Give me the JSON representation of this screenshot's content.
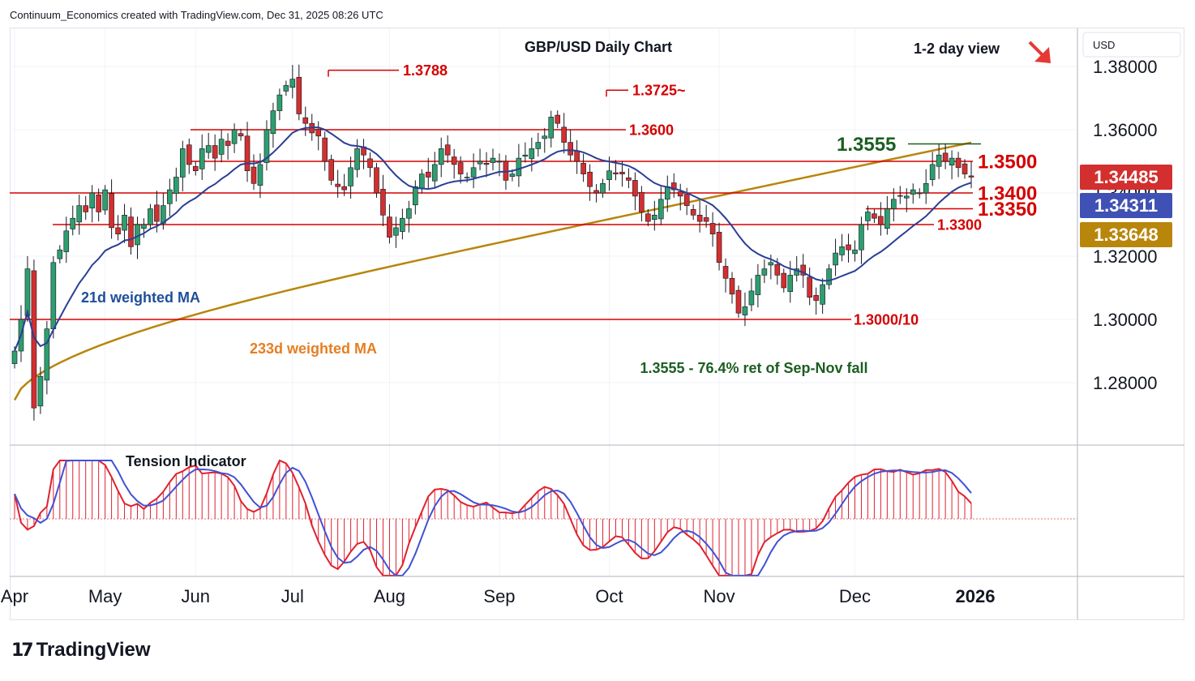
{
  "header": {
    "attribution": "Continuum_Economics created with TradingView.com, Dec 31, 2025 08:26 UTC"
  },
  "brand": {
    "logo_text": "TradingView"
  },
  "colors": {
    "up": "#26a69a",
    "down": "#e0212f",
    "candle_up": "#2e9e6e",
    "candle_down": "#d32f2f",
    "ma21": "#2a3f94",
    "ma233": "#b8860b",
    "level": "#d50000",
    "green_text": "#1b5e20",
    "orange_text": "#e67e22",
    "blue_text": "#1f4e9a"
  },
  "chart_data": [
    {
      "type": "candlestick",
      "title": "GBP/USD Daily Chart",
      "view_label": "1-2 day view",
      "view_arrow": "down-right-arrow",
      "currency": "USD",
      "x_ticks": [
        "Apr",
        "May",
        "Jun",
        "Jul",
        "Aug",
        "Sep",
        "Oct",
        "Nov",
        "Dec",
        "2026"
      ],
      "y_ticks": [
        "1.28000",
        "1.30000",
        "1.32000",
        "1.34000",
        "1.36000",
        "1.38000"
      ],
      "ylim": [
        1.266,
        1.387
      ],
      "price_labels": [
        {
          "value": "1.34485",
          "role": "last_price"
        },
        {
          "value": "1.34311",
          "role": "ma21"
        },
        {
          "value": "1.33648",
          "role": "ma233"
        }
      ],
      "levels": [
        {
          "label": "1.3788",
          "price": 1.3788
        },
        {
          "label": "1.3725~",
          "price": 1.3725
        },
        {
          "label": "1.3600",
          "price": 1.36
        },
        {
          "label": "1.3555",
          "price": 1.3555
        },
        {
          "label": "1.3500",
          "price": 1.35
        },
        {
          "label": "1.3400",
          "price": 1.34
        },
        {
          "label": "1.3350",
          "price": 1.335
        },
        {
          "label": "1.3300",
          "price": 1.33
        },
        {
          "label": "1.3000/10",
          "price": 1.3
        }
      ],
      "annotations": {
        "ma21_label": "21d weighted MA",
        "ma233_label": "233d weighted MA",
        "fib_note": "1.3555 - 76.4% ret of Sep-Nov fall"
      },
      "close_series": [
        [
          "Apr",
          1.29
        ],
        [
          "",
          1.3
        ],
        [
          "",
          1.316
        ],
        [
          "",
          1.272
        ],
        [
          "",
          1.282
        ],
        [
          "",
          1.297
        ],
        [
          "",
          1.318
        ],
        [
          "",
          1.322
        ],
        [
          "",
          1.328
        ],
        [
          "",
          1.332
        ],
        [
          "",
          1.336
        ],
        [
          "",
          1.334
        ],
        [
          "",
          1.34
        ],
        [
          "",
          1.334
        ],
        [
          "May",
          1.341
        ],
        [
          "",
          1.329
        ],
        [
          "",
          1.327
        ],
        [
          "",
          1.333
        ],
        [
          "",
          1.323
        ],
        [
          "",
          1.33
        ],
        [
          "",
          1.33
        ],
        [
          "",
          1.335
        ],
        [
          "",
          1.331
        ],
        [
          "",
          1.336
        ],
        [
          "",
          1.341
        ],
        [
          "",
          1.345
        ],
        [
          "",
          1.354
        ],
        [
          "",
          1.349
        ],
        [
          "Jun",
          1.347
        ],
        [
          "",
          1.354
        ],
        [
          "",
          1.355
        ],
        [
          "",
          1.351
        ],
        [
          "",
          1.357
        ],
        [
          "",
          1.355
        ],
        [
          "",
          1.36
        ],
        [
          "",
          1.358
        ],
        [
          "",
          1.347
        ],
        [
          "",
          1.343
        ],
        [
          "",
          1.349
        ],
        [
          "",
          1.36
        ],
        [
          "",
          1.366
        ],
        [
          "",
          1.371
        ],
        [
          "",
          1.374
        ],
        [
          "Jul",
          1.376
        ],
        [
          "",
          1.365
        ],
        [
          "",
          1.362
        ],
        [
          "",
          1.359
        ],
        [
          "",
          1.358
        ],
        [
          "",
          1.35
        ],
        [
          "",
          1.344
        ],
        [
          "",
          1.342
        ],
        [
          "",
          1.341
        ],
        [
          "",
          1.348
        ],
        [
          "",
          1.354
        ],
        [
          "",
          1.352
        ],
        [
          "",
          1.348
        ],
        [
          "",
          1.34
        ],
        [
          "",
          1.333
        ],
        [
          "Aug",
          1.326
        ],
        [
          "",
          1.329
        ],
        [
          "",
          1.332
        ],
        [
          "",
          1.335
        ],
        [
          "",
          1.342
        ],
        [
          "",
          1.346
        ],
        [
          "",
          1.345
        ],
        [
          "",
          1.349
        ],
        [
          "",
          1.354
        ],
        [
          "",
          1.352
        ],
        [
          "",
          1.349
        ],
        [
          "",
          1.346
        ],
        [
          "",
          1.345
        ],
        [
          "",
          1.348
        ],
        [
          "",
          1.35
        ],
        [
          "",
          1.349
        ],
        [
          "",
          1.351
        ],
        [
          "Sep",
          1.35
        ],
        [
          "",
          1.344
        ],
        [
          "",
          1.346
        ],
        [
          "",
          1.351
        ],
        [
          "",
          1.352
        ],
        [
          "",
          1.354
        ],
        [
          "",
          1.356
        ],
        [
          "",
          1.358
        ],
        [
          "",
          1.364
        ],
        [
          "",
          1.362
        ],
        [
          "",
          1.356
        ],
        [
          "",
          1.352
        ],
        [
          "",
          1.35
        ],
        [
          "",
          1.346
        ],
        [
          "",
          1.342
        ],
        [
          "",
          1.34
        ],
        [
          "",
          1.343
        ],
        [
          "Oct",
          1.347
        ],
        [
          "",
          1.346
        ],
        [
          "",
          1.346
        ],
        [
          "",
          1.344
        ],
        [
          "",
          1.339
        ],
        [
          "",
          1.334
        ],
        [
          "",
          1.331
        ],
        [
          "",
          1.333
        ],
        [
          "",
          1.338
        ],
        [
          "",
          1.342
        ],
        [
          "",
          1.341
        ],
        [
          "",
          1.339
        ],
        [
          "",
          1.336
        ],
        [
          "",
          1.333
        ],
        [
          "",
          1.331
        ],
        [
          "",
          1.331
        ],
        [
          "",
          1.327
        ],
        [
          "Nov",
          1.318
        ],
        [
          "",
          1.313
        ],
        [
          "",
          1.308
        ],
        [
          "",
          1.302
        ],
        [
          "",
          1.304
        ],
        [
          "",
          1.309
        ],
        [
          "",
          1.314
        ],
        [
          "",
          1.316
        ],
        [
          "",
          1.318
        ],
        [
          "",
          1.314
        ],
        [
          "",
          1.31
        ],
        [
          "",
          1.314
        ],
        [
          "",
          1.316
        ],
        [
          "",
          1.314
        ],
        [
          "",
          1.307
        ],
        [
          "",
          1.306
        ],
        [
          "",
          1.311
        ],
        [
          "",
          1.316
        ],
        [
          "",
          1.321
        ],
        [
          "",
          1.323
        ],
        [
          "",
          1.322
        ],
        [
          "Dec",
          1.322
        ],
        [
          "",
          1.33
        ],
        [
          "",
          1.334
        ],
        [
          "",
          1.332
        ],
        [
          "",
          1.33
        ],
        [
          "",
          1.335
        ],
        [
          "",
          1.338
        ],
        [
          "",
          1.339
        ],
        [
          "",
          1.339
        ],
        [
          "",
          1.341
        ],
        [
          "",
          1.34
        ],
        [
          "",
          1.343
        ],
        [
          "",
          1.349
        ],
        [
          "",
          1.352
        ],
        [
          "",
          1.35
        ],
        [
          "",
          1.351
        ],
        [
          "",
          1.348
        ],
        [
          "",
          1.346
        ],
        [
          "",
          1.345
        ]
      ]
    },
    {
      "type": "bar",
      "title": "Tension Indicator",
      "note": "oscillator with red histogram bars and blue signal line; no printed scale"
    }
  ]
}
